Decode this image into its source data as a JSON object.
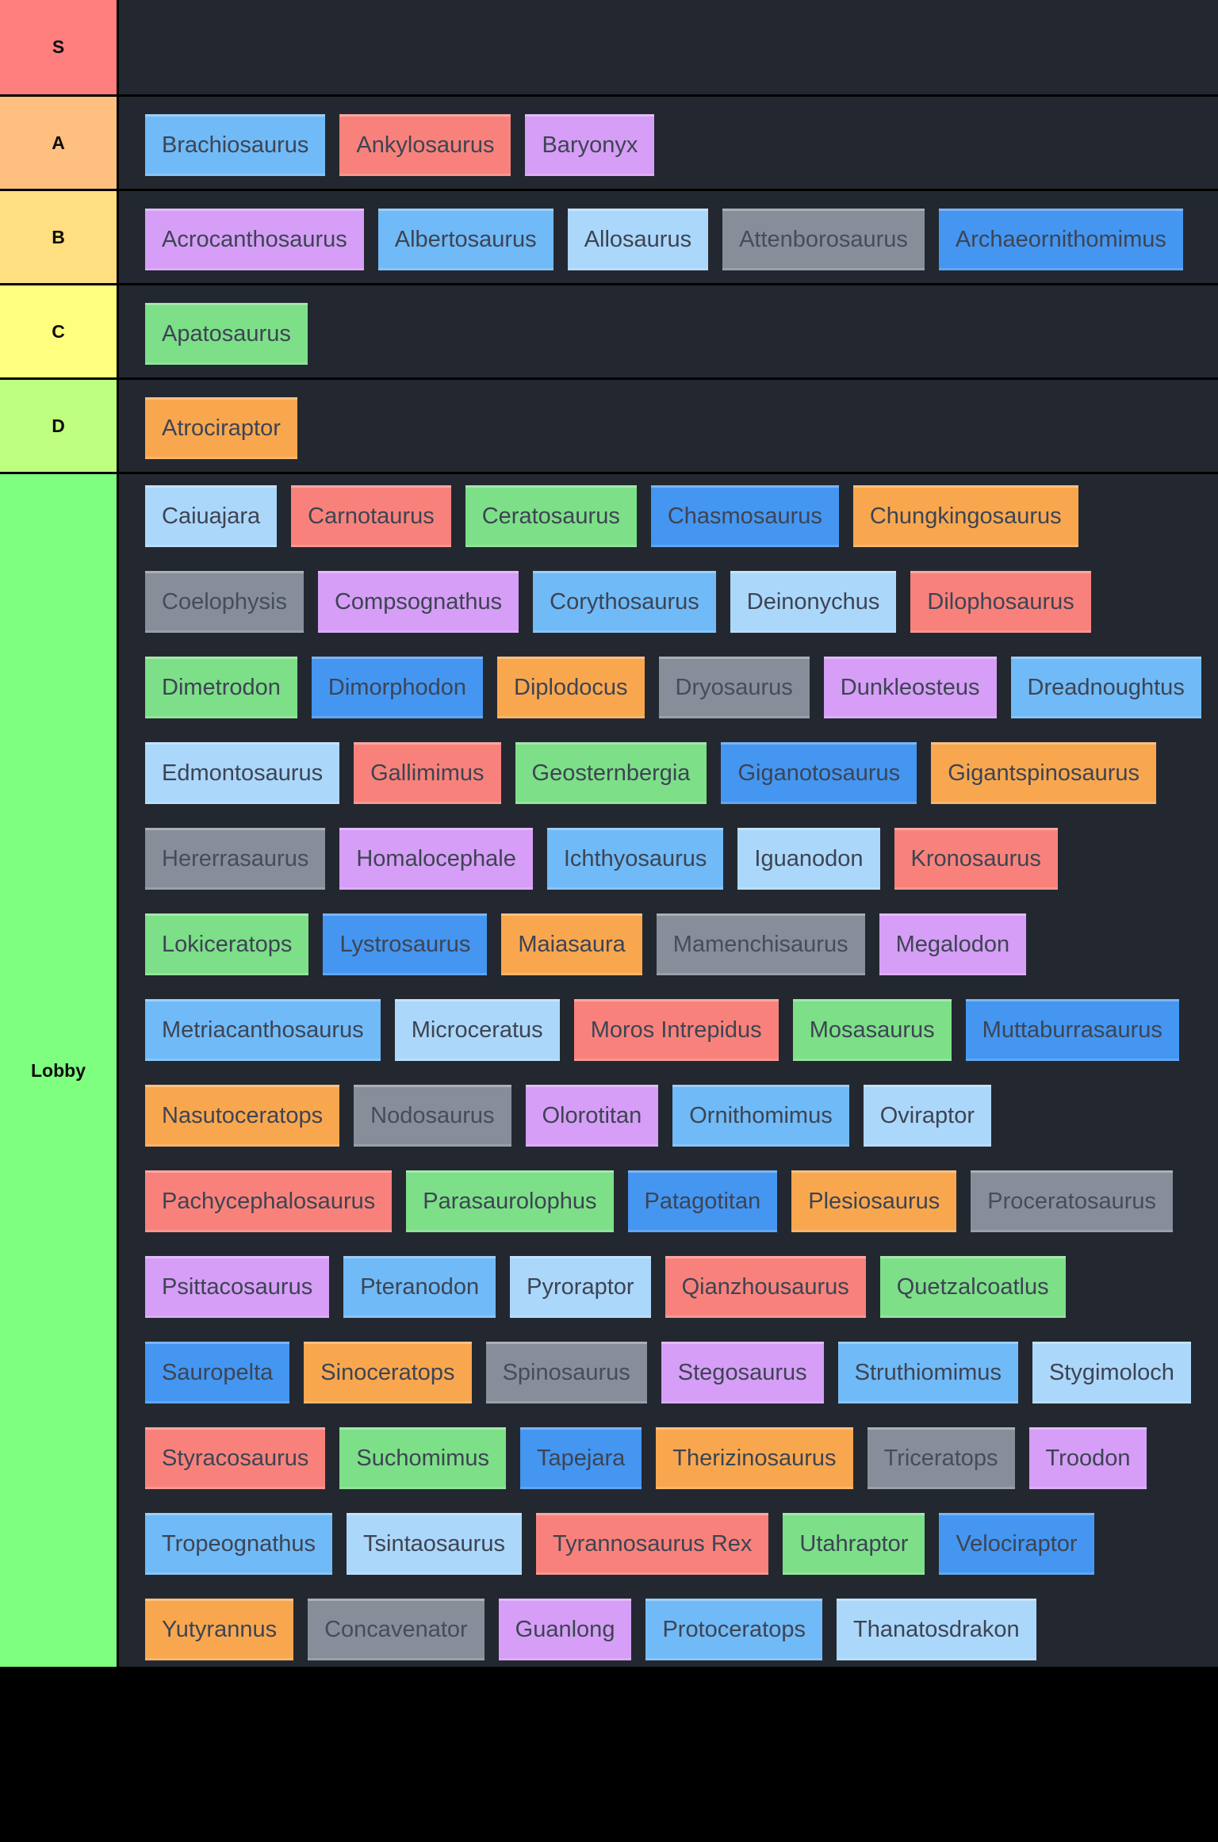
{
  "ui": {
    "background": "#000000",
    "row_background": "#232830",
    "chip_text_color": "#3d4453",
    "label_text_color": "#0d0d0d"
  },
  "palette": {
    "red": "#f8827b",
    "orange": "#f9a74f",
    "green": "#7ddf88",
    "mblue": "#4496f1",
    "blue": "#70baf7",
    "lightblue": "#abd7fa",
    "purple": "#d69ef6",
    "gray": "#878e99"
  },
  "tiers": [
    {
      "label": "S",
      "label_color": "#ff7f7f",
      "items": []
    },
    {
      "label": "A",
      "label_color": "#ffbf7f",
      "items": [
        {
          "label": "Brachiosaurus",
          "color": "blue"
        },
        {
          "label": "Ankylosaurus",
          "color": "red"
        },
        {
          "label": "Baryonyx",
          "color": "purple"
        }
      ]
    },
    {
      "label": "B",
      "label_color": "#ffdf7f",
      "items": [
        {
          "label": "Acrocanthosaurus",
          "color": "purple"
        },
        {
          "label": "Albertosaurus",
          "color": "blue"
        },
        {
          "label": "Allosaurus",
          "color": "lightblue"
        },
        {
          "label": "Attenborosaurus",
          "color": "gray"
        },
        {
          "label": "Archaeornithomimus",
          "color": "mblue"
        }
      ]
    },
    {
      "label": "C",
      "label_color": "#ffff7f",
      "items": [
        {
          "label": "Apatosaurus",
          "color": "green"
        }
      ]
    },
    {
      "label": "D",
      "label_color": "#bfff7f",
      "items": [
        {
          "label": "Atrociraptor",
          "color": "orange"
        }
      ]
    },
    {
      "label": "Lobby",
      "label_color": "#7fff7f",
      "items": [
        {
          "label": "Caiuajara",
          "color": "lightblue"
        },
        {
          "label": "Carnotaurus",
          "color": "red"
        },
        {
          "label": "Ceratosaurus",
          "color": "green"
        },
        {
          "label": "Chasmosaurus",
          "color": "mblue"
        },
        {
          "label": "Chungkingosaurus",
          "color": "orange"
        },
        {
          "label": "Coelophysis",
          "color": "gray"
        },
        {
          "label": "Compsognathus",
          "color": "purple"
        },
        {
          "label": "Corythosaurus",
          "color": "blue"
        },
        {
          "label": "Deinonychus",
          "color": "lightblue"
        },
        {
          "label": "Dilophosaurus",
          "color": "red"
        },
        {
          "label": "Dimetrodon",
          "color": "green"
        },
        {
          "label": "Dimorphodon",
          "color": "mblue"
        },
        {
          "label": "Diplodocus",
          "color": "orange"
        },
        {
          "label": "Dryosaurus",
          "color": "gray"
        },
        {
          "label": "Dunkleosteus",
          "color": "purple"
        },
        {
          "label": "Dreadnoughtus",
          "color": "blue"
        },
        {
          "label": "Edmontosaurus",
          "color": "lightblue"
        },
        {
          "label": "Gallimimus",
          "color": "red"
        },
        {
          "label": "Geosternbergia",
          "color": "green"
        },
        {
          "label": "Giganotosaurus",
          "color": "mblue"
        },
        {
          "label": "Gigantspinosaurus",
          "color": "orange"
        },
        {
          "label": "Hererrasaurus",
          "color": "gray"
        },
        {
          "label": "Homalocephale",
          "color": "purple"
        },
        {
          "label": "Ichthyosaurus",
          "color": "blue"
        },
        {
          "label": "Iguanodon",
          "color": "lightblue"
        },
        {
          "label": "Kronosaurus",
          "color": "red"
        },
        {
          "label": "Lokiceratops",
          "color": "green"
        },
        {
          "label": "Lystrosaurus",
          "color": "mblue"
        },
        {
          "label": "Maiasaura",
          "color": "orange"
        },
        {
          "label": "Mamenchisaurus",
          "color": "gray"
        },
        {
          "label": "Megalodon",
          "color": "purple"
        },
        {
          "label": "Metriacanthosaurus",
          "color": "blue"
        },
        {
          "label": "Microceratus",
          "color": "lightblue"
        },
        {
          "label": "Moros Intrepidus",
          "color": "red"
        },
        {
          "label": "Mosasaurus",
          "color": "green"
        },
        {
          "label": "Muttaburrasaurus",
          "color": "mblue"
        },
        {
          "label": "Nasutoceratops",
          "color": "orange"
        },
        {
          "label": "Nodosaurus",
          "color": "gray"
        },
        {
          "label": "Olorotitan",
          "color": "purple"
        },
        {
          "label": "Ornithomimus",
          "color": "blue"
        },
        {
          "label": "Oviraptor",
          "color": "lightblue"
        },
        {
          "label": "Pachycephalosaurus",
          "color": "red"
        },
        {
          "label": "Parasaurolophus",
          "color": "green"
        },
        {
          "label": "Patagotitan",
          "color": "mblue"
        },
        {
          "label": "Plesiosaurus",
          "color": "orange"
        },
        {
          "label": "Proceratosaurus",
          "color": "gray"
        },
        {
          "label": "Psittacosaurus",
          "color": "purple"
        },
        {
          "label": "Pteranodon",
          "color": "blue"
        },
        {
          "label": "Pyroraptor",
          "color": "lightblue"
        },
        {
          "label": "Qianzhousaurus",
          "color": "red"
        },
        {
          "label": "Quetzalcoatlus",
          "color": "green"
        },
        {
          "label": "Sauropelta",
          "color": "mblue"
        },
        {
          "label": "Sinoceratops",
          "color": "orange"
        },
        {
          "label": "Spinosaurus",
          "color": "gray"
        },
        {
          "label": "Stegosaurus",
          "color": "purple"
        },
        {
          "label": "Struthiomimus",
          "color": "blue"
        },
        {
          "label": "Stygimoloch",
          "color": "lightblue"
        },
        {
          "label": "Styracosaurus",
          "color": "red"
        },
        {
          "label": "Suchomimus",
          "color": "green"
        },
        {
          "label": "Tapejara",
          "color": "mblue"
        },
        {
          "label": "Therizinosaurus",
          "color": "orange"
        },
        {
          "label": "Triceratops",
          "color": "gray"
        },
        {
          "label": "Troodon",
          "color": "purple"
        },
        {
          "label": "Tropeognathus",
          "color": "blue"
        },
        {
          "label": "Tsintaosaurus",
          "color": "lightblue"
        },
        {
          "label": "Tyrannosaurus Rex",
          "color": "red"
        },
        {
          "label": "Utahraptor",
          "color": "green"
        },
        {
          "label": "Velociraptor",
          "color": "mblue"
        },
        {
          "label": "Yutyrannus",
          "color": "orange"
        },
        {
          "label": "Concavenator",
          "color": "gray"
        },
        {
          "label": "Guanlong",
          "color": "purple"
        },
        {
          "label": "Protoceratops",
          "color": "blue"
        },
        {
          "label": "Thanatosdrakon",
          "color": "lightblue"
        }
      ]
    }
  ]
}
